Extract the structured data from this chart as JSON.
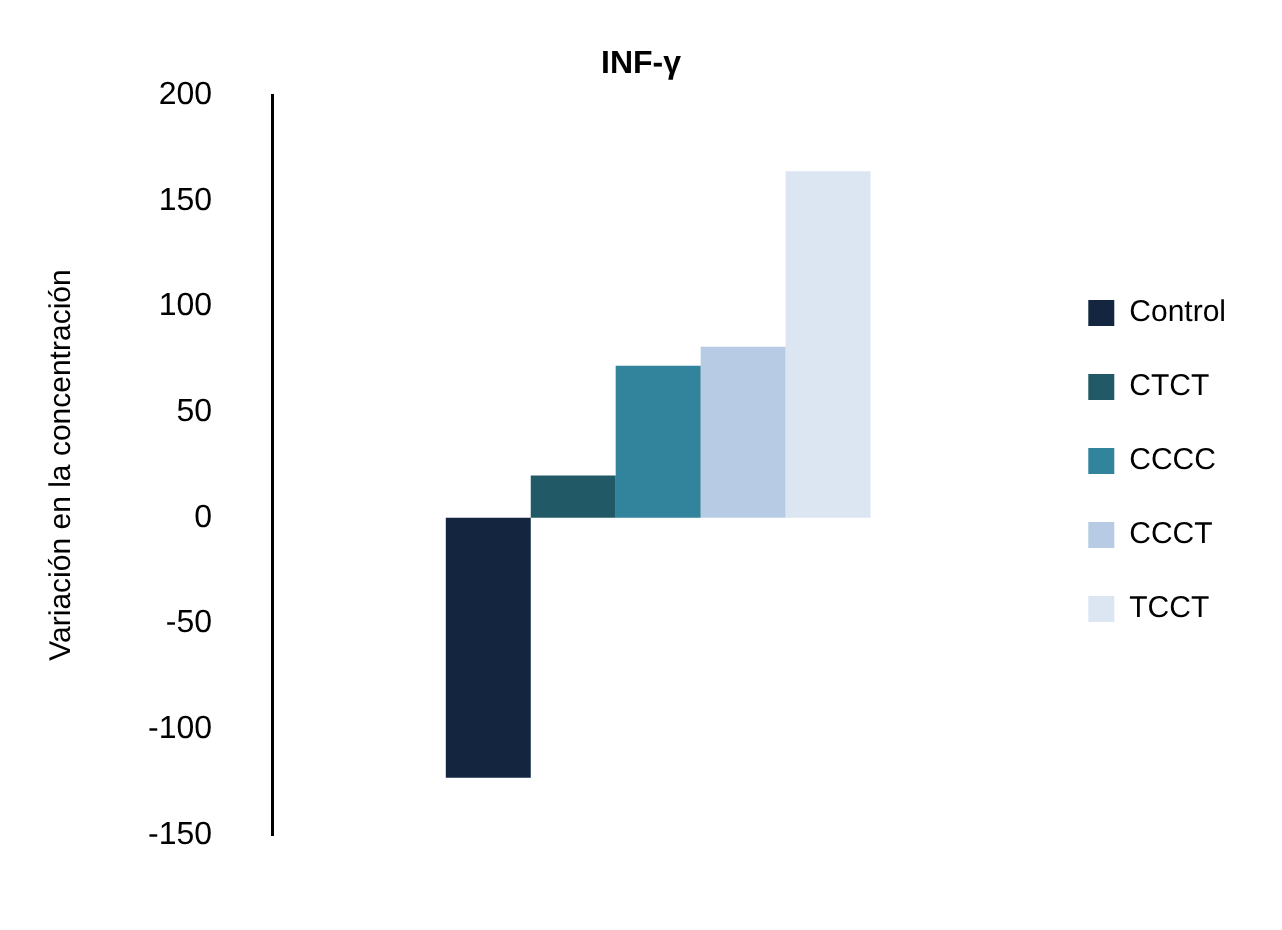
{
  "chart_data": {
    "type": "bar",
    "title": "INF-γ",
    "ylabel": "Variación en la concentración",
    "categories": [
      null
    ],
    "series": [
      {
        "name": "Control",
        "color": "#14263f",
        "values": [
          -123
        ]
      },
      {
        "name": "CTCT",
        "color": "#225966",
        "values": [
          20
        ]
      },
      {
        "name": "CCCC",
        "color": "#31849b",
        "values": [
          72
        ]
      },
      {
        "name": "CCCT",
        "color": "#b7cce4",
        "values": [
          81
        ]
      },
      {
        "name": "TCCT",
        "color": "#dce6f2",
        "values": [
          164
        ]
      }
    ],
    "ylim": [
      -150,
      200
    ],
    "yticks": [
      -150,
      -100,
      -50,
      0,
      50,
      100,
      150,
      200
    ],
    "grid": false,
    "legend": "right"
  }
}
